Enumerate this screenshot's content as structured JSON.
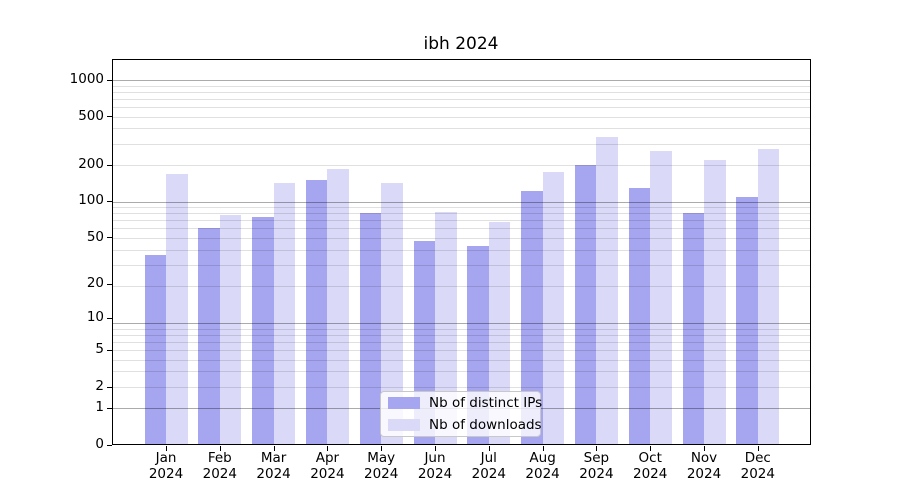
{
  "chart_data": {
    "type": "bar",
    "title": "ibh 2024",
    "categories": [
      "Jan 2024",
      "Feb 2024",
      "Mar 2024",
      "Apr 2024",
      "May 2024",
      "Jun 2024",
      "Jul 2024",
      "Aug 2024",
      "Sep 2024",
      "Oct 2024",
      "Nov 2024",
      "Dec 2024"
    ],
    "x_tick_months": [
      "Jan",
      "Feb",
      "Mar",
      "Apr",
      "May",
      "Jun",
      "Jul",
      "Aug",
      "Sep",
      "Oct",
      "Nov",
      "Dec"
    ],
    "x_tick_year": "2024",
    "series": [
      {
        "name": "Nb of distinct IPs",
        "color": "#a5a5f0",
        "values": [
          35,
          60,
          74,
          148,
          80,
          46,
          42,
          121,
          197,
          129,
          80,
          108
        ]
      },
      {
        "name": "Nb of downloads",
        "color": "#dadaf8",
        "values": [
          168,
          77,
          140,
          184,
          140,
          81,
          67,
          174,
          340,
          257,
          217,
          267
        ]
      }
    ],
    "yticks": [
      0,
      1,
      2,
      5,
      10,
      20,
      50,
      100,
      200,
      500,
      1000
    ],
    "yscale": "log(value+1)",
    "ylim": [
      0,
      1400
    ],
    "xlabel": "",
    "ylabel": "",
    "grid": "horizontal, log minor + decade major, drawn over bars",
    "legend_position": "lower center",
    "bar_group": "two bars per month, side by side"
  }
}
